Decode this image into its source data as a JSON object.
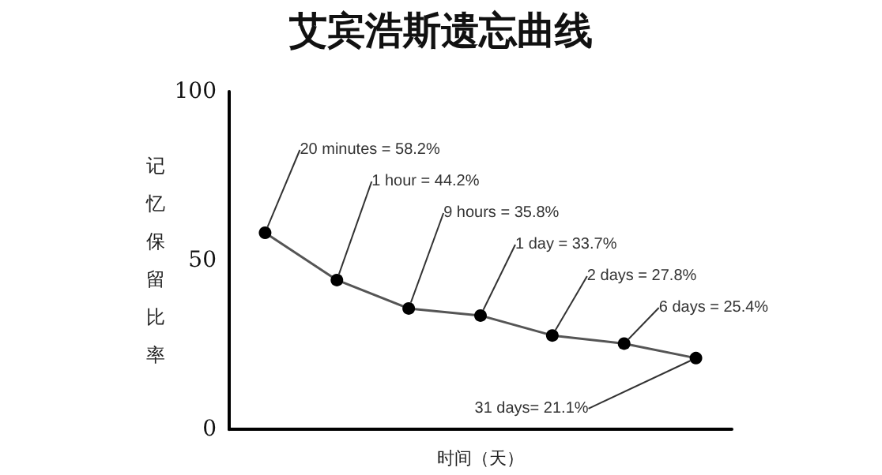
{
  "chart_data": {
    "type": "line",
    "title": "艾宾浩斯遗忘曲线",
    "xlabel": "时间（天）",
    "ylabel": "记忆保留比率",
    "categories": [
      null,
      null,
      null,
      null,
      null,
      null,
      null
    ],
    "series": [
      {
        "color": "#555555",
        "values": [
          58.2,
          44.2,
          35.8,
          33.7,
          27.8,
          25.4,
          21.1
        ],
        "value_labels": [
          "20 minutes = 58.2%",
          "1 hour = 44.2%",
          "9 hours = 35.8%",
          "1 day = 33.7%",
          "2 days = 27.8%",
          "6 days = 25.4%",
          "31 days= 21.1%"
        ]
      }
    ],
    "ylim": [
      0,
      100
    ],
    "yticks": [
      0,
      50,
      100
    ],
    "grid": false,
    "marker": "circle",
    "line_style": "solid"
  }
}
